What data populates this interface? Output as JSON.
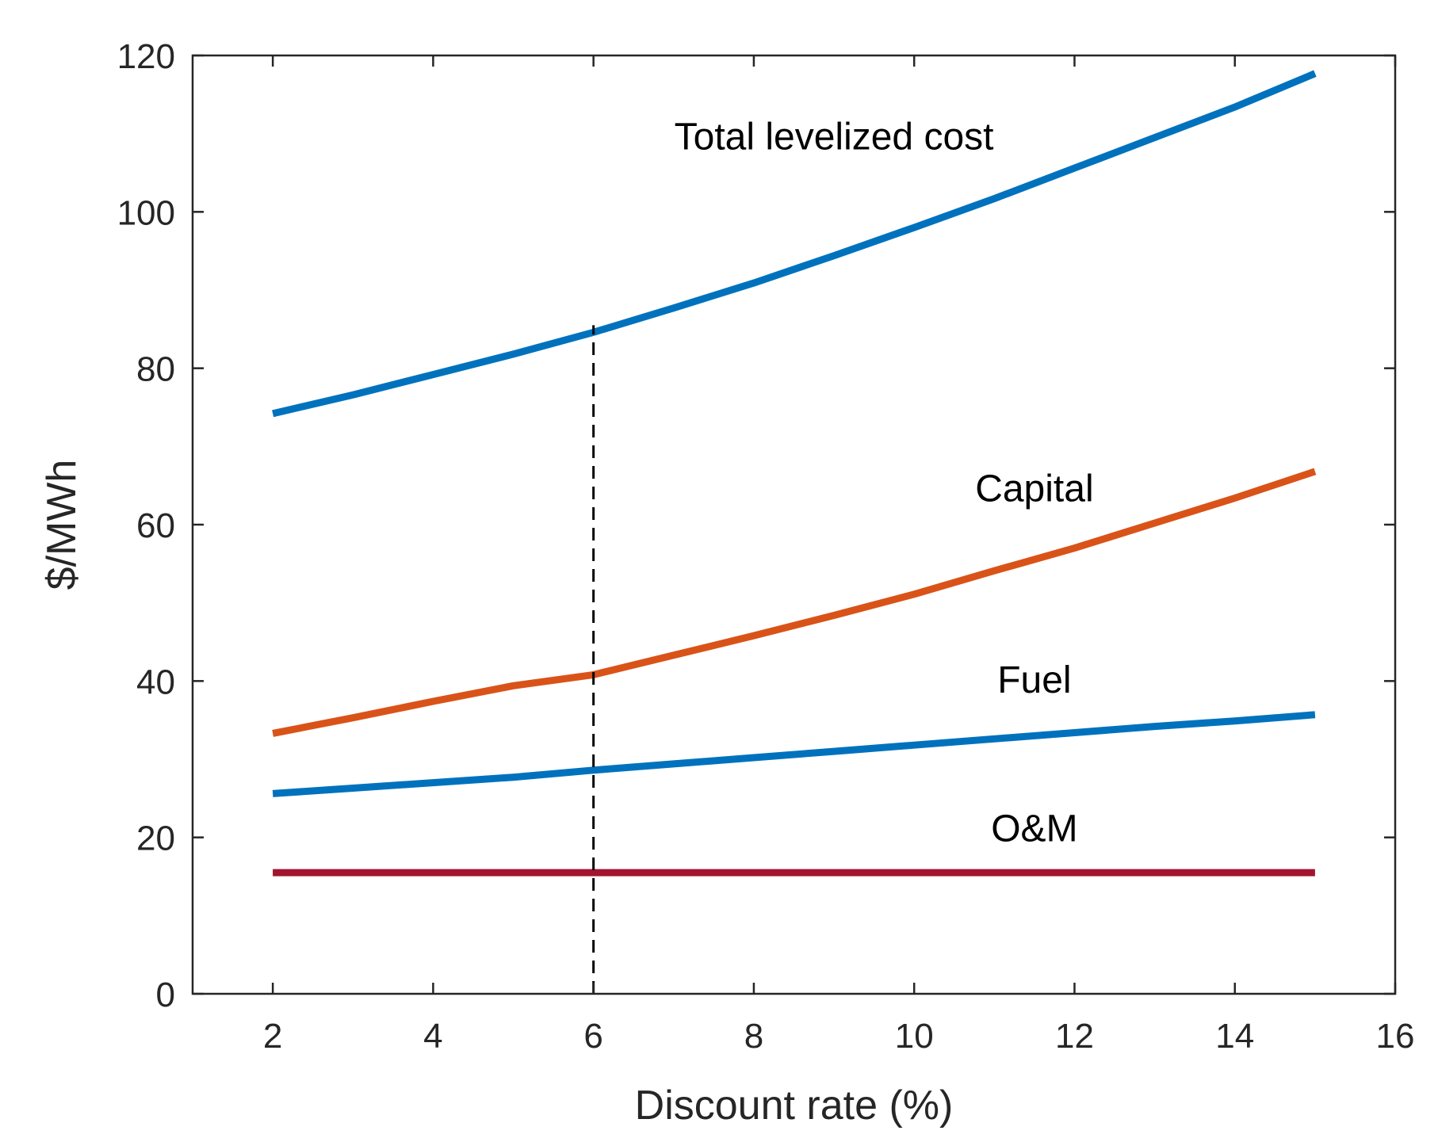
{
  "chart_data": {
    "type": "line",
    "title": "",
    "xlabel": "Discount rate (%)",
    "ylabel": "$/MWh",
    "xlim": [
      1,
      16
    ],
    "ylim": [
      0,
      120
    ],
    "xticks": [
      2,
      4,
      6,
      8,
      10,
      12,
      14,
      16
    ],
    "yticks": [
      0,
      20,
      40,
      60,
      80,
      100,
      120
    ],
    "xtick_labels": [
      "2",
      "4",
      "6",
      "8",
      "10",
      "12",
      "14",
      "16"
    ],
    "ytick_labels": [
      "0",
      "20",
      "40",
      "60",
      "80",
      "100",
      "120"
    ],
    "grid": false,
    "x": [
      2,
      3,
      4,
      5,
      6,
      7,
      8,
      9,
      10,
      11,
      12,
      13,
      14,
      15
    ],
    "series": [
      {
        "name": "Total levelized cost",
        "color": "#0072BD",
        "values": [
          74.2,
          76.6,
          79.2,
          81.8,
          84.6,
          87.7,
          90.9,
          94.4,
          98.0,
          101.7,
          105.6,
          109.5,
          113.4,
          117.7
        ]
      },
      {
        "name": "Capital",
        "color": "#D95319",
        "values": [
          33.3,
          35.3,
          37.4,
          39.4,
          40.8,
          43.3,
          45.8,
          48.4,
          51.1,
          54.1,
          57.0,
          60.2,
          63.4,
          66.8
        ]
      },
      {
        "name": "Fuel",
        "color": "#0072BD",
        "values": [
          25.6,
          26.3,
          27.0,
          27.7,
          28.6,
          29.4,
          30.2,
          31.0,
          31.8,
          32.6,
          33.4,
          34.2,
          34.9,
          35.7
        ]
      },
      {
        "name": "O&M",
        "color": "#A2142F",
        "values": [
          15.5,
          15.5,
          15.5,
          15.5,
          15.5,
          15.5,
          15.5,
          15.5,
          15.5,
          15.5,
          15.5,
          15.5,
          15.5,
          15.5
        ]
      }
    ],
    "reference_line": {
      "type": "vertical",
      "style": "dashed",
      "x": 6,
      "y_from": 0,
      "y_to": 85.5,
      "color": "#000000"
    },
    "annotations": [
      {
        "text": "Total levelized cost",
        "x": 9.0,
        "y": 108
      },
      {
        "text": "Capital",
        "x": 11.5,
        "y": 63
      },
      {
        "text": "Fuel",
        "x": 11.5,
        "y": 38.5
      },
      {
        "text": "O&M",
        "x": 11.5,
        "y": 19.5
      }
    ]
  }
}
